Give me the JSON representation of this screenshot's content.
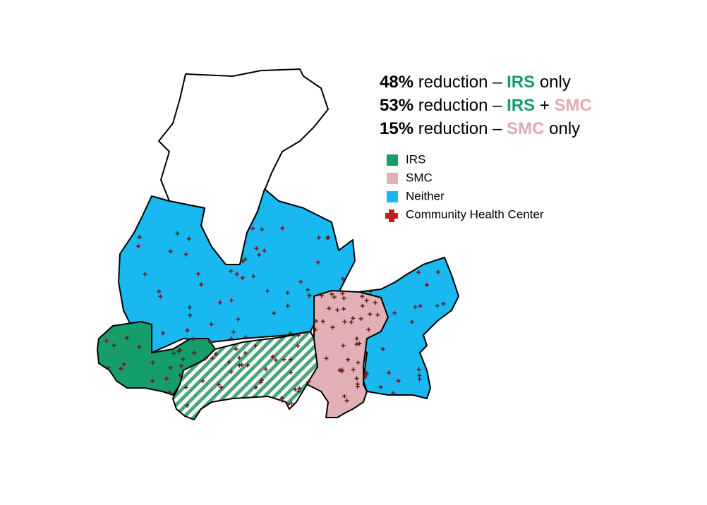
{
  "annotations": [
    {
      "percent": "48%",
      "text": " reduction – ",
      "parts": [
        {
          "text": "IRS",
          "color": "#159d6a"
        },
        {
          "text": " only",
          "color": "#000000"
        }
      ]
    },
    {
      "percent": "53%",
      "text": " reduction – ",
      "parts": [
        {
          "text": "IRS",
          "color": "#159d6a"
        },
        {
          "text": " + ",
          "color": "#000000"
        },
        {
          "text": "SMC",
          "color": "#e0aab0"
        }
      ]
    },
    {
      "percent": "15%",
      "text": " reduction – ",
      "parts": [
        {
          "text": "SMC",
          "color": "#e0aab0"
        },
        {
          "text": " only",
          "color": "#000000"
        }
      ]
    }
  ],
  "legend": [
    {
      "label": "IRS",
      "color": "#159d6a"
    },
    {
      "label": "SMC",
      "color": "#e0b0b5"
    },
    {
      "label": "Neither",
      "color": "#1ab8f0"
    },
    {
      "label": "Community  Health Center",
      "color": "#c0201e"
    }
  ]
}
